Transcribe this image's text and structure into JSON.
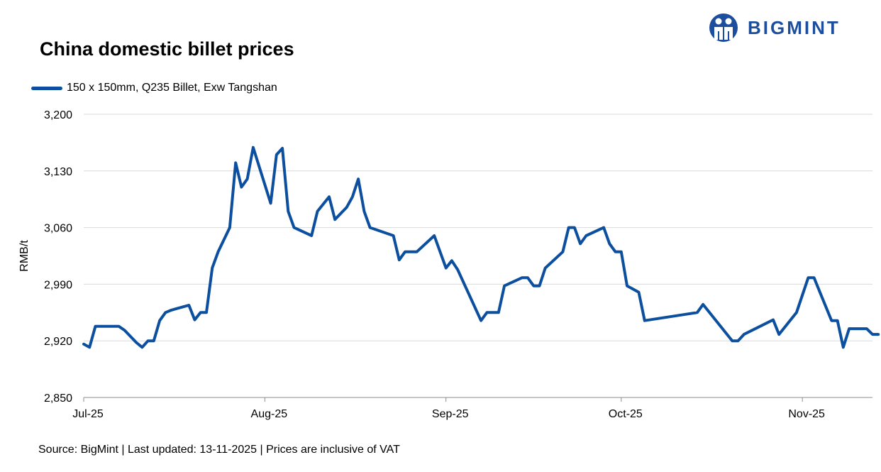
{
  "brand": {
    "name": "BIGMINT",
    "logo_color": "#1d4e9e"
  },
  "title": "China domestic billet prices",
  "source_note": "Source: BigMint | Last updated: 13-11-2025 | Prices are inclusive of VAT",
  "chart_data": {
    "type": "line",
    "title": "China domestic billet prices",
    "ylabel": "RMB/t",
    "xlabel": "",
    "ylim": [
      2850,
      3200
    ],
    "y_ticks": [
      2850,
      2920,
      2990,
      3060,
      3130,
      3200
    ],
    "y_tick_labels": [
      "2,850",
      "2,920",
      "2,990",
      "3,060",
      "3,130",
      "3,200"
    ],
    "x_ticks": [
      "2025-07-01",
      "2025-08-01",
      "2025-09-01",
      "2025-10-01",
      "2025-11-01"
    ],
    "x_tick_labels": [
      "Jul-25",
      "Aug-25",
      "Sep-25",
      "Oct-25",
      "Nov-25"
    ],
    "xlim": [
      "2025-07-01",
      "2025-11-13"
    ],
    "grid": "horizontal",
    "legend_position": "top-left",
    "series": [
      {
        "name": "150 x 150mm, Q235 Billet, Exw Tangshan",
        "color": "#0b4f9e",
        "points": [
          [
            "2025-07-01",
            2916
          ],
          [
            "2025-07-02",
            2912
          ],
          [
            "2025-07-03",
            2938
          ],
          [
            "2025-07-04",
            2938
          ],
          [
            "2025-07-07",
            2938
          ],
          [
            "2025-07-08",
            2933
          ],
          [
            "2025-07-10",
            2918
          ],
          [
            "2025-07-11",
            2912
          ],
          [
            "2025-07-12",
            2920
          ],
          [
            "2025-07-13",
            2920
          ],
          [
            "2025-07-14",
            2945
          ],
          [
            "2025-07-15",
            2955
          ],
          [
            "2025-07-16",
            2958
          ],
          [
            "2025-07-17",
            2960
          ],
          [
            "2025-07-18",
            2962
          ],
          [
            "2025-07-19",
            2964
          ],
          [
            "2025-07-20",
            2946
          ],
          [
            "2025-07-21",
            2955
          ],
          [
            "2025-07-22",
            2955
          ],
          [
            "2025-07-23",
            3010
          ],
          [
            "2025-07-24",
            3030
          ],
          [
            "2025-07-26",
            3060
          ],
          [
            "2025-07-27",
            3140
          ],
          [
            "2025-07-28",
            3110
          ],
          [
            "2025-07-29",
            3120
          ],
          [
            "2025-07-30",
            3159
          ],
          [
            "2025-08-02",
            3090
          ],
          [
            "2025-08-03",
            3150
          ],
          [
            "2025-08-04",
            3158
          ],
          [
            "2025-08-05",
            3080
          ],
          [
            "2025-08-06",
            3060
          ],
          [
            "2025-08-09",
            3050
          ],
          [
            "2025-08-10",
            3080
          ],
          [
            "2025-08-12",
            3098
          ],
          [
            "2025-08-13",
            3070
          ],
          [
            "2025-08-15",
            3085
          ],
          [
            "2025-08-16",
            3098
          ],
          [
            "2025-08-17",
            3120
          ],
          [
            "2025-08-18",
            3080
          ],
          [
            "2025-08-19",
            3060
          ],
          [
            "2025-08-23",
            3050
          ],
          [
            "2025-08-24",
            3020
          ],
          [
            "2025-08-25",
            3030
          ],
          [
            "2025-08-27",
            3030
          ],
          [
            "2025-08-30",
            3050
          ],
          [
            "2025-09-01",
            3010
          ],
          [
            "2025-09-02",
            3019
          ],
          [
            "2025-09-03",
            3008
          ],
          [
            "2025-09-07",
            2945
          ],
          [
            "2025-09-08",
            2955
          ],
          [
            "2025-09-10",
            2955
          ],
          [
            "2025-09-11",
            2988
          ],
          [
            "2025-09-14",
            2998
          ],
          [
            "2025-09-15",
            2998
          ],
          [
            "2025-09-16",
            2988
          ],
          [
            "2025-09-17",
            2988
          ],
          [
            "2025-09-18",
            3010
          ],
          [
            "2025-09-21",
            3030
          ],
          [
            "2025-09-22",
            3060
          ],
          [
            "2025-09-23",
            3060
          ],
          [
            "2025-09-24",
            3040
          ],
          [
            "2025-09-25",
            3050
          ],
          [
            "2025-09-28",
            3060
          ],
          [
            "2025-09-29",
            3040
          ],
          [
            "2025-09-30",
            3030
          ],
          [
            "2025-10-01",
            3030
          ],
          [
            "2025-10-02",
            2988
          ],
          [
            "2025-10-04",
            2980
          ],
          [
            "2025-10-05",
            2945
          ],
          [
            "2025-10-14",
            2955
          ],
          [
            "2025-10-15",
            2965
          ],
          [
            "2025-10-20",
            2920
          ],
          [
            "2025-10-21",
            2920
          ],
          [
            "2025-10-22",
            2928
          ],
          [
            "2025-10-27",
            2946
          ],
          [
            "2025-10-28",
            2928
          ],
          [
            "2025-10-31",
            2955
          ],
          [
            "2025-11-02",
            2998
          ],
          [
            "2025-11-03",
            2998
          ],
          [
            "2025-11-04",
            2980
          ],
          [
            "2025-11-06",
            2945
          ],
          [
            "2025-11-07",
            2945
          ],
          [
            "2025-11-08",
            2912
          ],
          [
            "2025-11-09",
            2935
          ],
          [
            "2025-11-12",
            2935
          ],
          [
            "2025-11-13",
            2928
          ],
          [
            "2025-11-14",
            2928
          ]
        ]
      }
    ]
  }
}
